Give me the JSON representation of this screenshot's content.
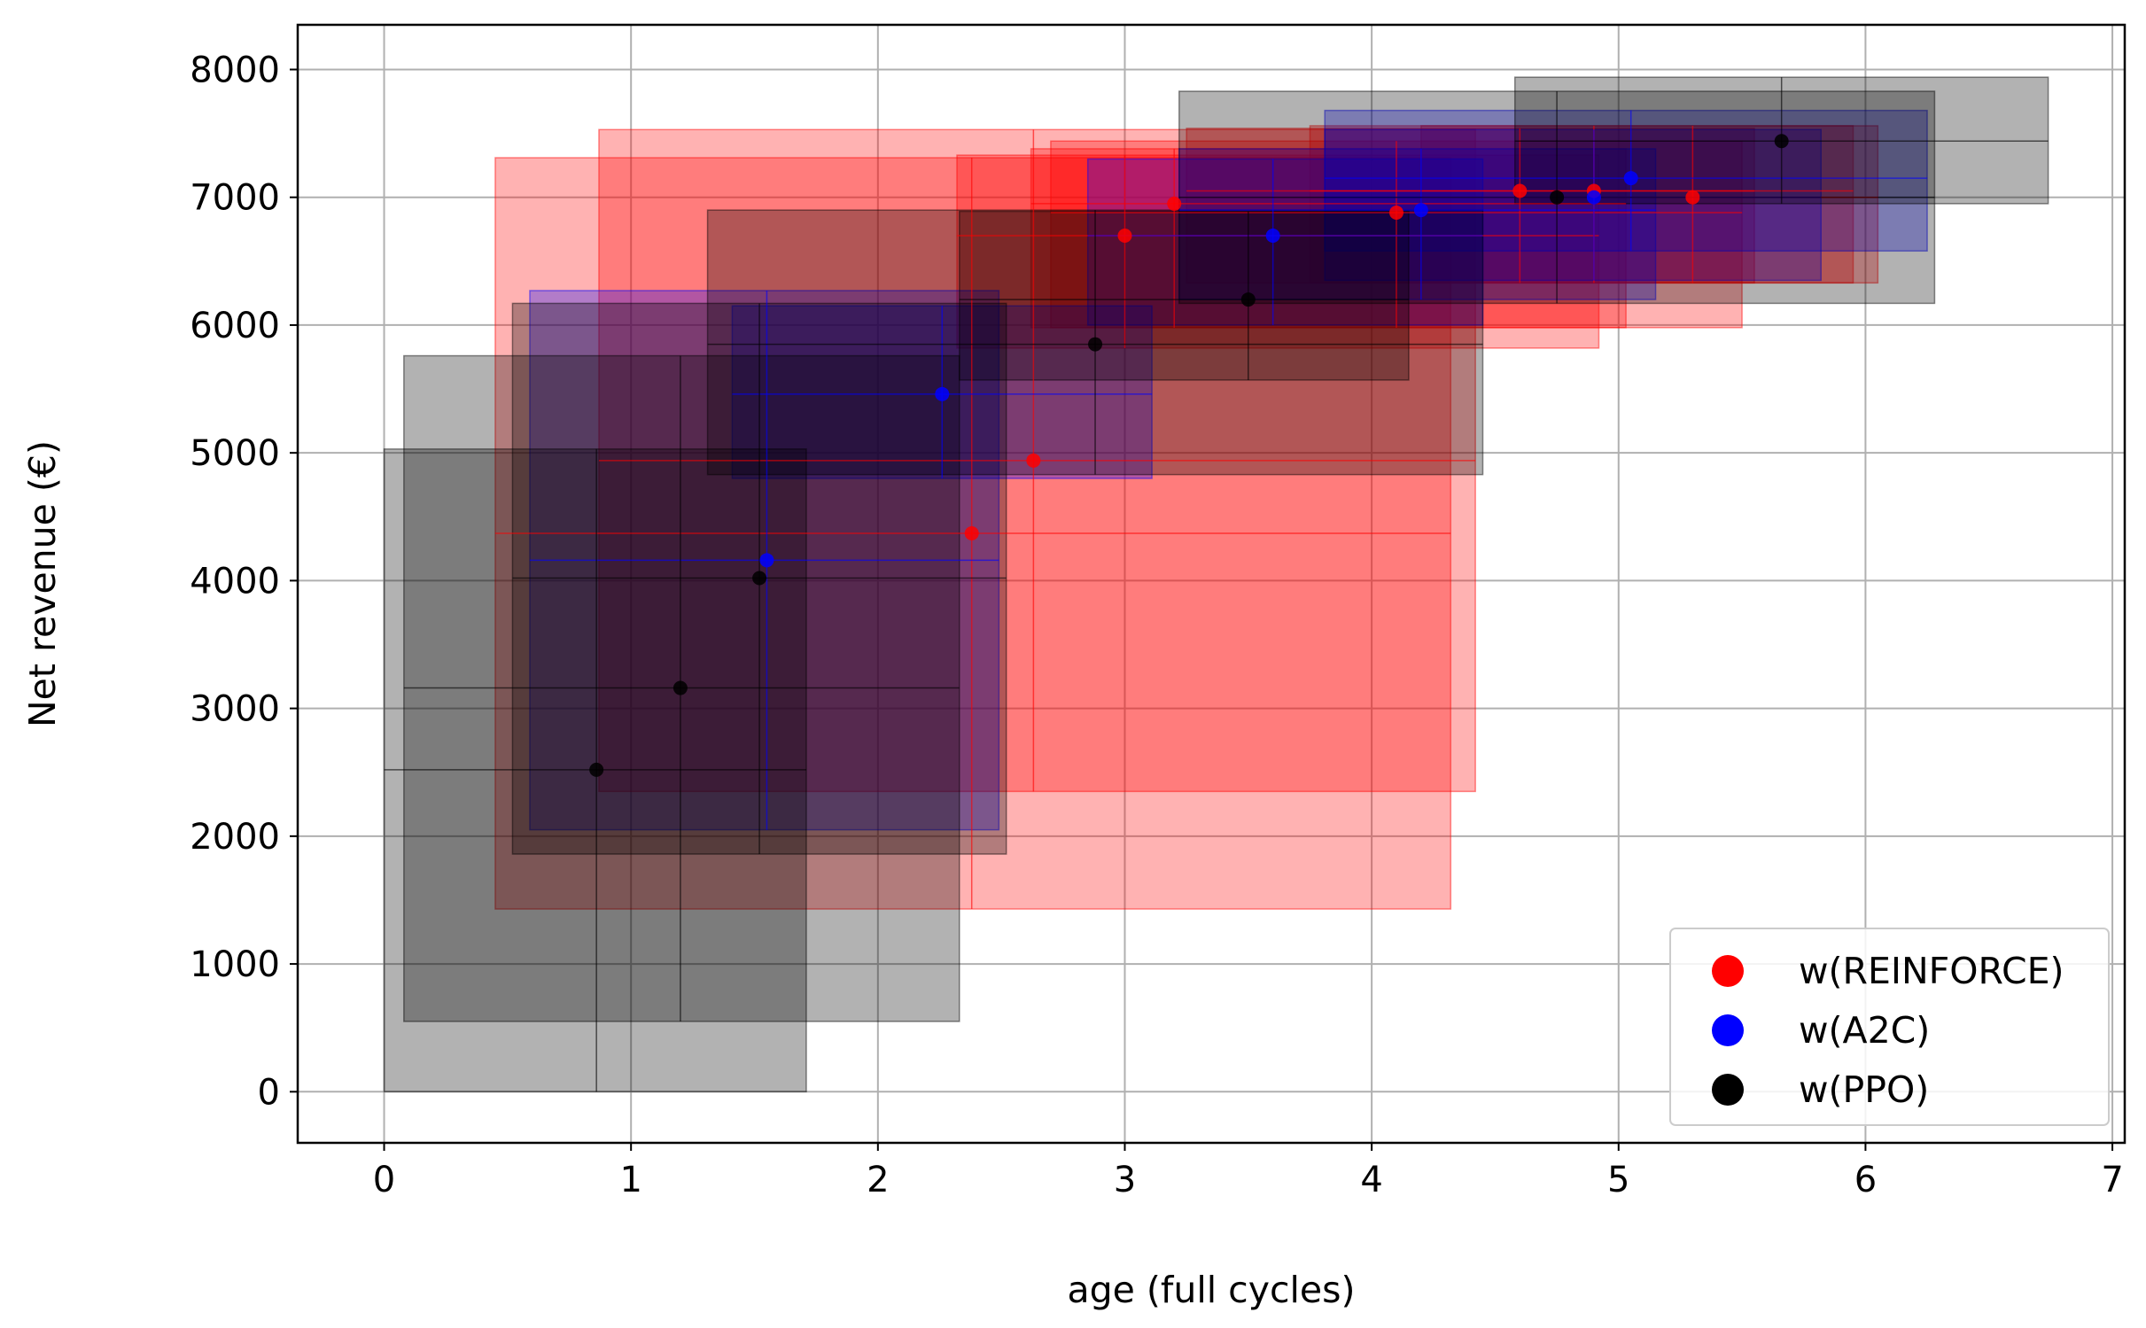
{
  "chart_data": {
    "type": "scatter",
    "title": "",
    "xlabel": "age (full cycles)",
    "ylabel": "Net revenue (€)",
    "xlim": [
      -0.35,
      7.05
    ],
    "ylim": [
      -400,
      8350
    ],
    "xticks": [
      0,
      1,
      2,
      3,
      4,
      5,
      6,
      7
    ],
    "yticks": [
      0,
      1000,
      2000,
      3000,
      4000,
      5000,
      6000,
      7000,
      8000
    ],
    "grid": true,
    "legend_position": "lower-right",
    "series": [
      {
        "name": "w(REINFORCE)",
        "color": "#ff0000",
        "points": [
          {
            "x": 2.38,
            "y": 4370,
            "x_range": [
              0.45,
              4.32
            ],
            "y_range": [
              1430,
              7310
            ]
          },
          {
            "x": 2.63,
            "y": 4940,
            "x_range": [
              0.87,
              4.42
            ],
            "y_range": [
              2350,
              7530
            ]
          },
          {
            "x": 3.0,
            "y": 6700,
            "x_range": [
              2.32,
              4.92
            ],
            "y_range": [
              5820,
              7330
            ]
          },
          {
            "x": 3.2,
            "y": 6950,
            "x_range": [
              2.62,
              5.03
            ],
            "y_range": [
              5980,
              7380
            ]
          },
          {
            "x": 4.1,
            "y": 6880,
            "x_range": [
              2.7,
              5.5
            ],
            "y_range": [
              5980,
              7440
            ]
          },
          {
            "x": 4.6,
            "y": 7050,
            "x_range": [
              3.25,
              5.55
            ],
            "y_range": [
              6330,
              7540
            ]
          },
          {
            "x": 4.9,
            "y": 7050,
            "x_range": [
              3.75,
              5.95
            ],
            "y_range": [
              6330,
              7560
            ]
          },
          {
            "x": 5.3,
            "y": 7000,
            "x_range": [
              4.2,
              6.05
            ],
            "y_range": [
              6330,
              7560
            ]
          }
        ]
      },
      {
        "name": "w(A2C)",
        "color": "#0000ff",
        "points": [
          {
            "x": 1.55,
            "y": 4160,
            "x_range": [
              0.59,
              2.49
            ],
            "y_range": [
              2050,
              6270
            ]
          },
          {
            "x": 2.26,
            "y": 5460,
            "x_range": [
              1.41,
              3.11
            ],
            "y_range": [
              4800,
              6150
            ]
          },
          {
            "x": 3.6,
            "y": 6700,
            "x_range": [
              2.85,
              4.45
            ],
            "y_range": [
              6000,
              7300
            ]
          },
          {
            "x": 4.2,
            "y": 6900,
            "x_range": [
              3.22,
              5.15
            ],
            "y_range": [
              6200,
              7380
            ]
          },
          {
            "x": 4.9,
            "y": 7000,
            "x_range": [
              3.81,
              5.82
            ],
            "y_range": [
              6350,
              7530
            ]
          },
          {
            "x": 5.05,
            "y": 7150,
            "x_range": [
              3.81,
              6.25
            ],
            "y_range": [
              6580,
              7680
            ]
          }
        ]
      },
      {
        "name": "w(PPO)",
        "color": "#000000",
        "points": [
          {
            "x": 0.86,
            "y": 2520,
            "x_range": [
              0.0,
              1.71
            ],
            "y_range": [
              0,
              5030
            ]
          },
          {
            "x": 1.2,
            "y": 3160,
            "x_range": [
              0.08,
              2.33
            ],
            "y_range": [
              550,
              5760
            ]
          },
          {
            "x": 1.52,
            "y": 4020,
            "x_range": [
              0.52,
              2.52
            ],
            "y_range": [
              1860,
              6170
            ]
          },
          {
            "x": 2.88,
            "y": 5850,
            "x_range": [
              1.31,
              4.45
            ],
            "y_range": [
              4830,
              6900
            ]
          },
          {
            "x": 3.5,
            "y": 6200,
            "x_range": [
              2.33,
              4.15
            ],
            "y_range": [
              5570,
              6890
            ]
          },
          {
            "x": 4.75,
            "y": 7000,
            "x_range": [
              3.22,
              6.28
            ],
            "y_range": [
              6170,
              7830
            ]
          },
          {
            "x": 5.66,
            "y": 7440,
            "x_range": [
              4.58,
              6.74
            ],
            "y_range": [
              6950,
              7940
            ]
          }
        ]
      }
    ]
  }
}
